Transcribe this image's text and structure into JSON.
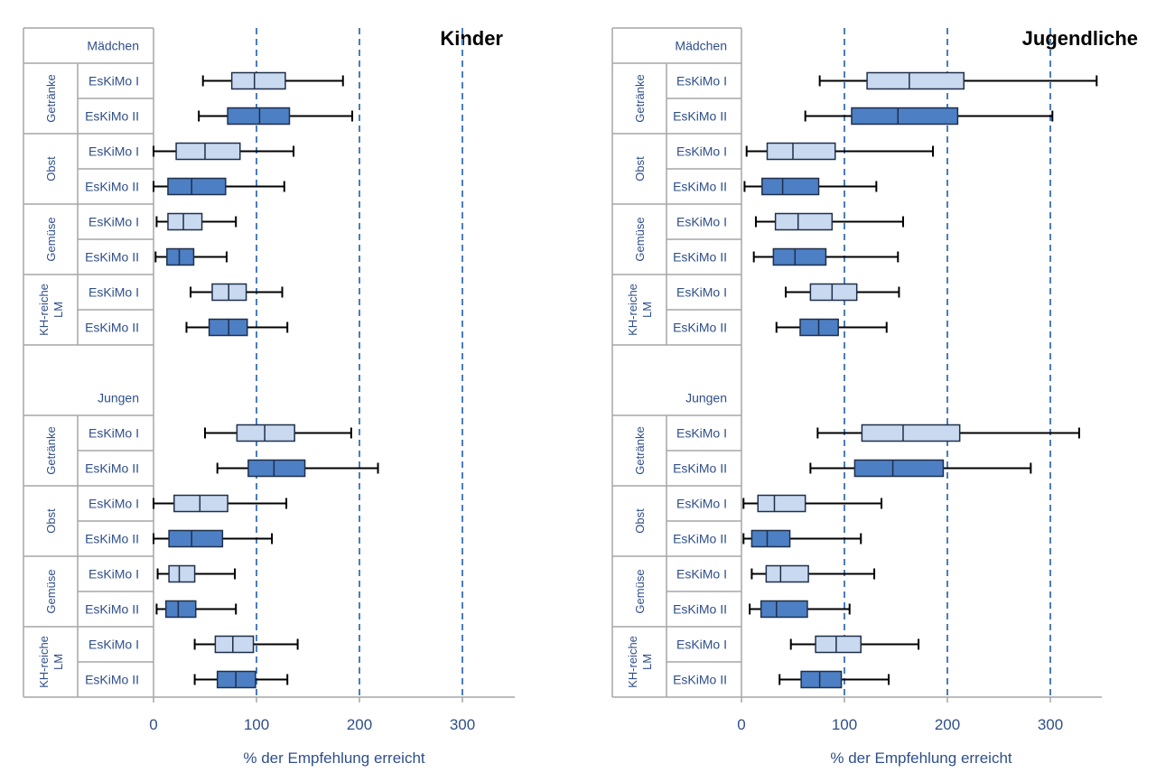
{
  "colors": {
    "box_light": "#c9d9f0",
    "box_dark": "#4d7fc4",
    "ref_line": "#4a7dbf",
    "grid": "#a6a6a6",
    "text": "#2f4f8a",
    "whisker": "#000000"
  },
  "chart_data": [
    {
      "type": "boxplot",
      "orientation": "horizontal",
      "title": "Kinder",
      "xlabel": "% der Empfehlung erreicht",
      "xlim": [
        0,
        350
      ],
      "xticks": [
        0,
        100,
        200,
        300
      ],
      "reference_lines": [
        100,
        200,
        300
      ],
      "rows": [
        {
          "kind": "header",
          "label": "Mädchen"
        },
        {
          "kind": "box",
          "group": "Getränke",
          "label": "EsKiMo I",
          "style": "light",
          "min": 48,
          "q1": 76,
          "median": 98,
          "q3": 128,
          "max": 184
        },
        {
          "kind": "box",
          "group": "Getränke",
          "label": "EsKiMo II",
          "style": "dark",
          "min": 44,
          "q1": 72,
          "median": 103,
          "q3": 132,
          "max": 193
        },
        {
          "kind": "box",
          "group": "Obst",
          "label": "EsKiMo I",
          "style": "light",
          "min": 0,
          "q1": 22,
          "median": 50,
          "q3": 84,
          "max": 136
        },
        {
          "kind": "box",
          "group": "Obst",
          "label": "EsKiMo II",
          "style": "dark",
          "min": 0,
          "q1": 14,
          "median": 37,
          "q3": 70,
          "max": 127
        },
        {
          "kind": "box",
          "group": "Gemüse",
          "label": "EsKiMo I",
          "style": "light",
          "min": 3,
          "q1": 14,
          "median": 29,
          "q3": 47,
          "max": 80
        },
        {
          "kind": "box",
          "group": "Gemüse",
          "label": "EsKiMo II",
          "style": "dark",
          "min": 2,
          "q1": 13,
          "median": 25,
          "q3": 39,
          "max": 71
        },
        {
          "kind": "box",
          "group": "KH-reiche LM",
          "label": "EsKiMo I",
          "style": "light",
          "min": 36,
          "q1": 57,
          "median": 73,
          "q3": 90,
          "max": 125
        },
        {
          "kind": "box",
          "group": "KH-reiche LM",
          "label": "EsKiMo II",
          "style": "dark",
          "min": 32,
          "q1": 54,
          "median": 73,
          "q3": 91,
          "max": 130
        },
        {
          "kind": "spacer"
        },
        {
          "kind": "header",
          "label": "Jungen"
        },
        {
          "kind": "box",
          "group": "Getränke",
          "label": "EsKiMo I",
          "style": "light",
          "min": 50,
          "q1": 81,
          "median": 108,
          "q3": 137,
          "max": 192
        },
        {
          "kind": "box",
          "group": "Getränke",
          "label": "EsKiMo II",
          "style": "dark",
          "min": 62,
          "q1": 92,
          "median": 117,
          "q3": 147,
          "max": 218
        },
        {
          "kind": "box",
          "group": "Obst",
          "label": "EsKiMo I",
          "style": "light",
          "min": 0,
          "q1": 20,
          "median": 45,
          "q3": 72,
          "max": 129
        },
        {
          "kind": "box",
          "group": "Obst",
          "label": "EsKiMo II",
          "style": "dark",
          "min": 0,
          "q1": 15,
          "median": 37,
          "q3": 67,
          "max": 115
        },
        {
          "kind": "box",
          "group": "Gemüse",
          "label": "EsKiMo I",
          "style": "light",
          "min": 4,
          "q1": 15,
          "median": 25,
          "q3": 40,
          "max": 79
        },
        {
          "kind": "box",
          "group": "Gemüse",
          "label": "EsKiMo II",
          "style": "dark",
          "min": 3,
          "q1": 12,
          "median": 24,
          "q3": 41,
          "max": 80
        },
        {
          "kind": "box",
          "group": "KH-reiche LM",
          "label": "EsKiMo I",
          "style": "light",
          "min": 40,
          "q1": 60,
          "median": 77,
          "q3": 97,
          "max": 140
        },
        {
          "kind": "box",
          "group": "KH-reiche LM",
          "label": "EsKiMo II",
          "style": "dark",
          "min": 40,
          "q1": 62,
          "median": 80,
          "q3": 99,
          "max": 130
        }
      ]
    },
    {
      "type": "boxplot",
      "orientation": "horizontal",
      "title": "Jugendliche",
      "xlabel": "% der Empfehlung erreicht",
      "xlim": [
        0,
        350
      ],
      "xticks": [
        0,
        100,
        200,
        300
      ],
      "reference_lines": [
        100,
        200,
        300
      ],
      "rows": [
        {
          "kind": "header",
          "label": "Mädchen"
        },
        {
          "kind": "box",
          "group": "Getränke",
          "label": "EsKiMo I",
          "style": "light",
          "min": 76,
          "q1": 122,
          "median": 163,
          "q3": 216,
          "max": 345
        },
        {
          "kind": "box",
          "group": "Getränke",
          "label": "EsKiMo II",
          "style": "dark",
          "min": 62,
          "q1": 107,
          "median": 152,
          "q3": 210,
          "max": 302
        },
        {
          "kind": "box",
          "group": "Obst",
          "label": "EsKiMo I",
          "style": "light",
          "min": 5,
          "q1": 25,
          "median": 50,
          "q3": 91,
          "max": 186
        },
        {
          "kind": "box",
          "group": "Obst",
          "label": "EsKiMo II",
          "style": "dark",
          "min": 3,
          "q1": 20,
          "median": 40,
          "q3": 75,
          "max": 131
        },
        {
          "kind": "box",
          "group": "Gemüse",
          "label": "EsKiMo I",
          "style": "light",
          "min": 14,
          "q1": 33,
          "median": 55,
          "q3": 88,
          "max": 157
        },
        {
          "kind": "box",
          "group": "Gemüse",
          "label": "EsKiMo II",
          "style": "dark",
          "min": 12,
          "q1": 31,
          "median": 52,
          "q3": 82,
          "max": 152
        },
        {
          "kind": "box",
          "group": "KH-reiche LM",
          "label": "EsKiMo I",
          "style": "light",
          "min": 43,
          "q1": 67,
          "median": 88,
          "q3": 112,
          "max": 153
        },
        {
          "kind": "box",
          "group": "KH-reiche LM",
          "label": "EsKiMo II",
          "style": "dark",
          "min": 34,
          "q1": 57,
          "median": 75,
          "q3": 94,
          "max": 141
        },
        {
          "kind": "spacer"
        },
        {
          "kind": "header",
          "label": "Jungen"
        },
        {
          "kind": "box",
          "group": "Getränke",
          "label": "EsKiMo I",
          "style": "light",
          "min": 74,
          "q1": 117,
          "median": 157,
          "q3": 212,
          "max": 328
        },
        {
          "kind": "box",
          "group": "Getränke",
          "label": "EsKiMo II",
          "style": "dark",
          "min": 67,
          "q1": 110,
          "median": 147,
          "q3": 196,
          "max": 281
        },
        {
          "kind": "box",
          "group": "Obst",
          "label": "EsKiMo I",
          "style": "light",
          "min": 2,
          "q1": 16,
          "median": 32,
          "q3": 62,
          "max": 136
        },
        {
          "kind": "box",
          "group": "Obst",
          "label": "EsKiMo II",
          "style": "dark",
          "min": 2,
          "q1": 10,
          "median": 25,
          "q3": 47,
          "max": 116
        },
        {
          "kind": "box",
          "group": "Gemüse",
          "label": "EsKiMo I",
          "style": "light",
          "min": 10,
          "q1": 24,
          "median": 38,
          "q3": 65,
          "max": 129
        },
        {
          "kind": "box",
          "group": "Gemüse",
          "label": "EsKiMo II",
          "style": "dark",
          "min": 8,
          "q1": 19,
          "median": 34,
          "q3": 64,
          "max": 105
        },
        {
          "kind": "box",
          "group": "KH-reiche LM",
          "label": "EsKiMo I",
          "style": "light",
          "min": 48,
          "q1": 72,
          "median": 92,
          "q3": 116,
          "max": 172
        },
        {
          "kind": "box",
          "group": "KH-reiche LM",
          "label": "EsKiMo II",
          "style": "dark",
          "min": 37,
          "q1": 58,
          "median": 76,
          "q3": 97,
          "max": 143
        }
      ]
    }
  ]
}
